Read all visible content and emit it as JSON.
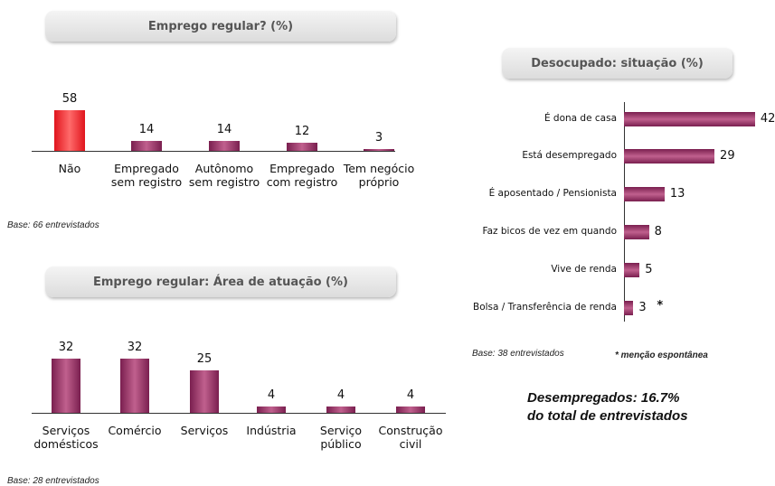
{
  "chart_data": [
    {
      "type": "bar",
      "title": "Emprego regular? (%)",
      "categories": [
        "Não",
        "Empregado sem registro",
        "Autônomo sem registro",
        "Empregado com registro",
        "Tem negócio próprio"
      ],
      "values": [
        58,
        14,
        14,
        12,
        3
      ],
      "colors": [
        "#e0141c",
        "#7a1f4f",
        "#7a1f4f",
        "#7a1f4f",
        "#7a1f4f"
      ],
      "note": "Base: 66 entrevistados"
    },
    {
      "type": "bar",
      "title": "Emprego regular: Área de atuação (%)",
      "categories": [
        "Serviços domésticos",
        "Comércio",
        "Serviços",
        "Indústria",
        "Serviço público",
        "Construção civil"
      ],
      "values": [
        32,
        32,
        25,
        4,
        4,
        4
      ],
      "color": "#7a1f4f",
      "note": "Base: 28 entrevistados"
    },
    {
      "type": "barh",
      "title": "Desocupado: situação (%)",
      "categories": [
        "É dona de casa",
        "Está desempregado",
        "É aposentado / Pensionista",
        "Faz bicos de vez em quando",
        "Vive de renda",
        "Bolsa / Transferência de renda"
      ],
      "values": [
        42,
        29,
        13,
        8,
        5,
        3
      ],
      "markers": [
        null,
        null,
        null,
        null,
        null,
        "*"
      ],
      "color": "#7a1f4f",
      "note": "Base: 38 entrevistados",
      "footnote": "* menção espontânea"
    }
  ],
  "summary": [
    "Desempregados: 16.7%",
    "do total de entrevistados"
  ]
}
